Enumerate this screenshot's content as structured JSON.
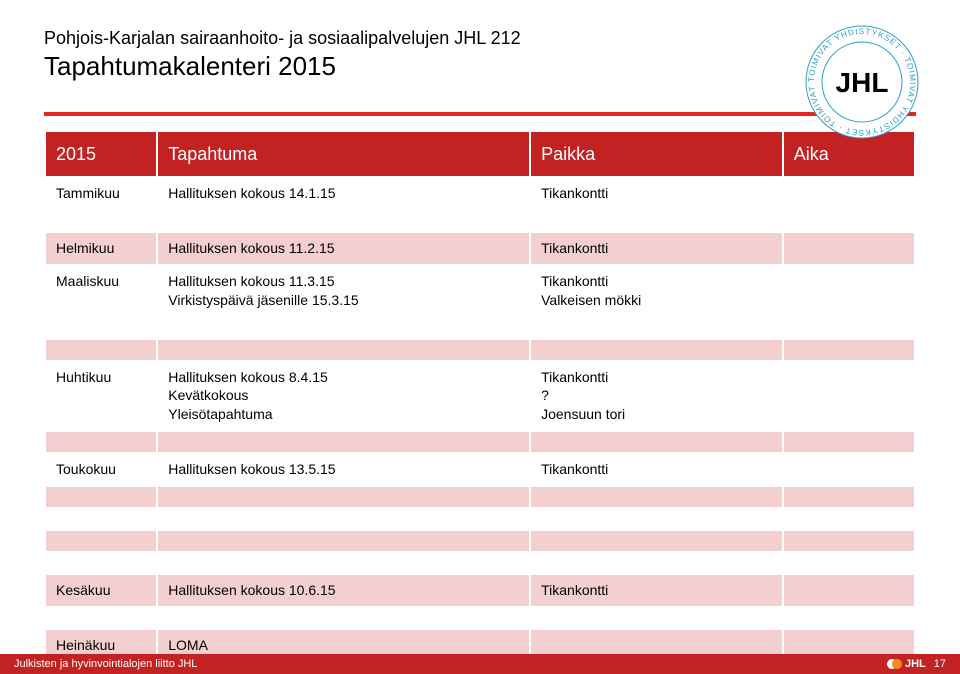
{
  "header": {
    "subtitle": "Pohjois-Karjalan sairaanhoito- ja sosiaalipalvelujen JHL 212",
    "title": "Tapahtumakalenteri 2015",
    "logo": {
      "text_main": "JHL",
      "ring_text": "TOIMIVAT YHDISTYKSET · TOIMIVAT YHDISTYKSET · TOIMIVAT YHDISTYKSET ·",
      "ring_color": "#2aa0c8",
      "text_color": "#000000"
    },
    "underline_color": "#e5261e"
  },
  "table": {
    "header_bg": "#c32222",
    "header_fg": "#ffffff",
    "pink_bg": "#f4cfcf",
    "columns": [
      {
        "key": "year",
        "label": "2015"
      },
      {
        "key": "event",
        "label": "Tapahtuma"
      },
      {
        "key": "place",
        "label": "Paikka"
      },
      {
        "key": "time",
        "label": "Aika"
      }
    ],
    "rows": [
      {
        "style": "plain",
        "month": "Tammikuu",
        "event": "Hallituksen kokous 14.1.15",
        "place": "Tikankontti",
        "time": ""
      },
      {
        "style": "empty"
      },
      {
        "style": "pink",
        "month": "Helmikuu",
        "event": "Hallituksen kokous 11.2.15",
        "place": "Tikankontti",
        "time": ""
      },
      {
        "style": "plain",
        "month": "Maaliskuu",
        "event": "Hallituksen kokous 11.3.15\nVirkistyspäivä jäsenille 15.3.15",
        "place": "Tikankontti\nValkeisen mökki",
        "time": ""
      },
      {
        "style": "empty"
      },
      {
        "style": "empty-pink"
      },
      {
        "style": "plain tall",
        "month": "Huhtikuu",
        "event": "Hallituksen kokous 8.4.15\nKevätkokous\nYleisötapahtuma",
        "place": "Tikankontti\n?\nJoensuun tori",
        "time": ""
      },
      {
        "style": "empty-pink"
      },
      {
        "style": "plain",
        "month": "Toukokuu",
        "event": "Hallituksen kokous 13.5.15",
        "place": "Tikankontti",
        "time": ""
      },
      {
        "style": "empty-pink"
      },
      {
        "style": "empty"
      },
      {
        "style": "empty-pink"
      },
      {
        "style": "empty"
      },
      {
        "style": "pink",
        "month": "Kesäkuu",
        "event": "Hallituksen kokous 10.6.15",
        "place": "Tikankontti",
        "time": ""
      },
      {
        "style": "empty"
      },
      {
        "style": "pink",
        "month": "Heinäkuu",
        "event": "LOMA",
        "place": "",
        "time": ""
      }
    ]
  },
  "footer": {
    "left": "Julkisten ja hyvinvointialojen liitto JHL",
    "logo_text": "JHL",
    "page": "17",
    "bg": "#c32222",
    "fg": "#ffffff"
  }
}
